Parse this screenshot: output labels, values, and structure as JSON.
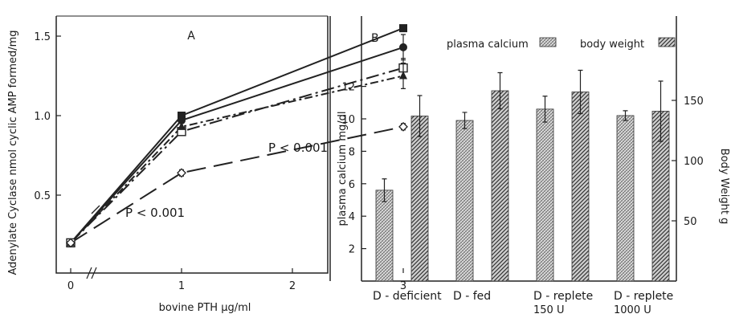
{
  "chart_data": [
    {
      "panel": "A",
      "type": "line",
      "xlabel": "bovine PTH μg/ml",
      "ylabel": "Adenylate Cyclase  nmol cyclic AMP formed/mg",
      "x_ticks": [
        "0",
        "1",
        "2",
        "3"
      ],
      "y_ticks": [
        "0.5",
        "1.0",
        "1.5"
      ],
      "xlim": [
        0,
        3
      ],
      "ylim": [
        0.2,
        1.55
      ],
      "axis_break": true,
      "series": [
        {
          "marker": "filled-square",
          "line": "solid",
          "x": [
            0,
            1,
            3
          ],
          "y": [
            0.2,
            1.0,
            1.55
          ]
        },
        {
          "marker": "filled-circle",
          "line": "solid",
          "x": [
            0,
            1,
            3
          ],
          "y": [
            0.2,
            0.97,
            1.43
          ],
          "err": [
            0,
            0,
            0.08
          ]
        },
        {
          "marker": "open-square",
          "line": "dash-dot-long",
          "x": [
            0,
            1,
            3
          ],
          "y": [
            0.2,
            0.9,
            1.3
          ],
          "err": [
            0,
            0,
            0.06
          ]
        },
        {
          "marker": "filled-triangle",
          "line": "dash-dot",
          "x": [
            0,
            1,
            3
          ],
          "y": [
            0.2,
            0.93,
            1.25
          ],
          "err": [
            0,
            0,
            0.08
          ]
        },
        {
          "marker": "open-diamond",
          "line": "long-dash",
          "x": [
            0,
            1,
            3
          ],
          "y": [
            0.2,
            0.64,
            0.93
          ],
          "err": [
            0,
            0.02,
            0.02
          ]
        }
      ],
      "annotations": [
        "P < 0.001",
        "P < 0.001"
      ]
    },
    {
      "panel": "B",
      "type": "bar",
      "categories": [
        [
          "D - deficient"
        ],
        [
          "D - fed"
        ],
        [
          "D - replete",
          "150 U"
        ],
        [
          "D - replete",
          "1000 U"
        ]
      ],
      "ylabel_left": "plasma calcium mg/dl",
      "ylabel_right": "Body Weight  g",
      "left_ticks": [
        "2",
        "4",
        "6",
        "8",
        "10",
        "12"
      ],
      "right_ticks": [
        "50",
        "100",
        "150"
      ],
      "ylim_left": [
        0,
        14.5
      ],
      "ylim_right": [
        0,
        185
      ],
      "legend_position": "top",
      "series": [
        {
          "name": "plasma calcium",
          "axis": "left",
          "pattern": "fine-hatch",
          "values": [
            5.6,
            9.9,
            10.6,
            10.2
          ],
          "err": [
            0.7,
            0.5,
            0.8,
            0.3
          ]
        },
        {
          "name": "body weight",
          "axis": "right",
          "pattern": "diagonal-hatch",
          "values": [
            137,
            158,
            157,
            141
          ],
          "err": [
            17,
            15,
            18,
            25
          ]
        }
      ]
    }
  ]
}
